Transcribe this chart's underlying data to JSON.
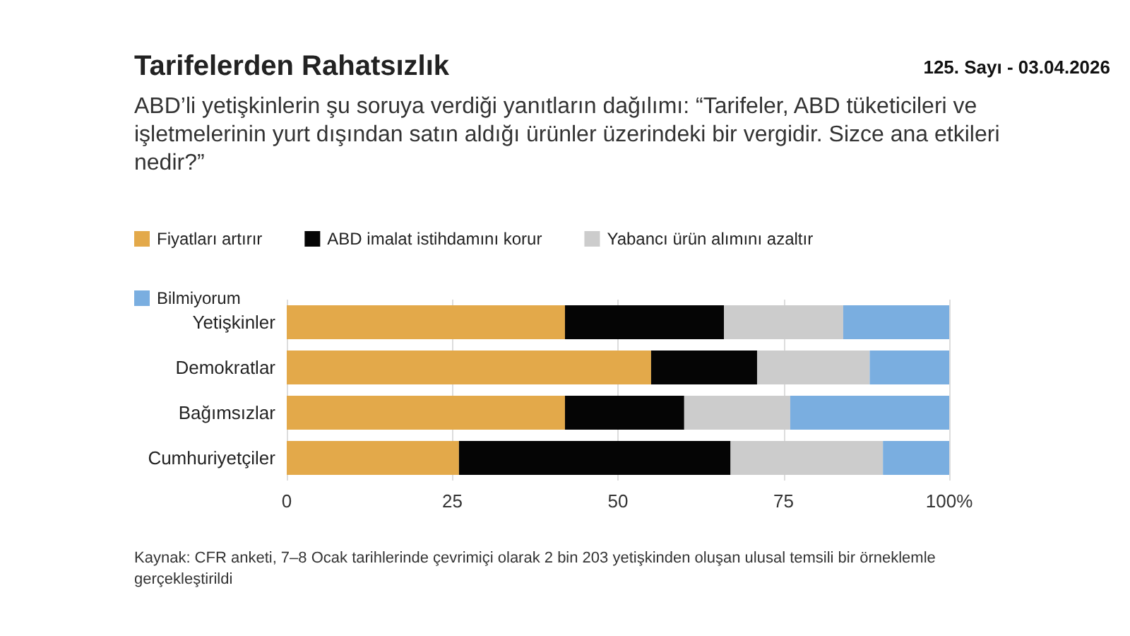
{
  "chart_data": {
    "type": "bar",
    "orientation": "horizontal",
    "stacked": true,
    "title": "Tarifelerden Rahatsızlık",
    "subtitle": "ABD’li yetişkinlerin şu soruya verdiği yanıtların dağılımı: “Tarifeler, ABD tüketicileri ve işletmelerinin yurt dışından satın aldığı ürünler üzerindeki bir vergidir. Sizce ana etkileri nedir?”",
    "annotations": [
      "125. Sayı - 03.04.2026",
      "Kaynak: CFR anketi, 7–8 Ocak tarihlerinde çevrimiçi olarak 2 bin 203 yetişkinden oluşan ulusal temsili bir örneklemle gerçekleştirildi"
    ],
    "categories": [
      "Yetişkinler",
      "Demokratlar",
      "Bağımsızlar",
      "Cumhuriyetçiler"
    ],
    "series": [
      {
        "name": "Fiyatları artırır",
        "color": "#e3a94a",
        "values": [
          42,
          55,
          42,
          26
        ]
      },
      {
        "name": "ABD imalat istihdamını korur",
        "color": "#050505",
        "values": [
          24,
          16,
          18,
          41
        ]
      },
      {
        "name": "Yabancı ürün alımını azaltır",
        "color": "#cccccc",
        "values": [
          18,
          17,
          16,
          23
        ]
      },
      {
        "name": "Bilmiyorum",
        "color": "#7aaee0",
        "values": [
          16,
          12,
          24,
          10
        ]
      }
    ],
    "xlim": [
      0,
      100
    ],
    "xticks": [
      0,
      25,
      50,
      75,
      {
        "value": 100,
        "label": "100%"
      }
    ],
    "grid": "x",
    "legend": "top left"
  }
}
